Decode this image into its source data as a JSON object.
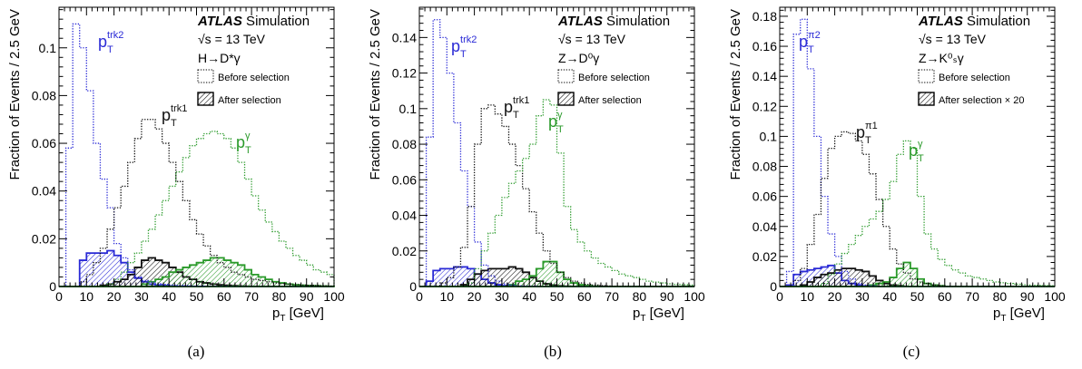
{
  "chart_data": [
    {
      "type": "line",
      "caption": "(a)",
      "xlabel": "p_T [GeV]",
      "ylabel": "Fraction of Events / 2.5 GeV",
      "xlim": [
        0,
        100
      ],
      "ylim": [
        0,
        0.117
      ],
      "xticks": [
        0,
        10,
        20,
        30,
        40,
        50,
        60,
        70,
        80,
        90,
        100
      ],
      "yticks": [
        0,
        0.02,
        0.04,
        0.06,
        0.08,
        0.1
      ],
      "ytick_labels": [
        "0",
        "0.02",
        "0.04",
        "0.06",
        "0.08",
        "0.1"
      ],
      "atlas": "ATLAS",
      "atlas_sub": "Simulation",
      "energy": "√s = 13 TeV",
      "process": "H→D*γ",
      "legend": [
        "Before selection",
        "After selection"
      ],
      "x_edges": [
        0,
        2.5,
        5,
        7.5,
        10,
        12.5,
        15,
        17.5,
        20,
        22.5,
        25,
        27.5,
        30,
        32.5,
        35,
        37.5,
        40,
        42.5,
        45,
        47.5,
        50,
        52.5,
        55,
        57.5,
        60,
        62.5,
        65,
        67.5,
        70,
        72.5,
        75,
        77.5,
        80,
        82.5,
        85,
        87.5,
        90,
        92.5,
        95,
        97.5,
        100
      ],
      "series": [
        {
          "name": "p_T^trk2",
          "label_main": "p",
          "label_sub": "T",
          "label_sup": "trk2",
          "color": "#2a2ad6",
          "before": [
            0,
            0.058,
            0.11,
            0.1,
            0.082,
            0.06,
            0.045,
            0.033,
            0.018,
            0.012,
            0.007,
            0.004,
            0.0025,
            0.0018,
            0.0012,
            0.0009,
            0.0006,
            0.0004,
            0.0003,
            0.0002,
            0.0002,
            0.0001,
            0.0001,
            0.0001,
            0.0001,
            0,
            0,
            0,
            0,
            0,
            0,
            0,
            0,
            0,
            0,
            0,
            0,
            0,
            0,
            0
          ],
          "after": [
            0,
            0,
            0,
            0.011,
            0.014,
            0.014,
            0.014,
            0.015,
            0.013,
            0.01,
            0.006,
            0.0035,
            0.002,
            0.001,
            0.0006,
            0.0004,
            0.0002,
            0.0001,
            0.0001,
            0,
            0,
            0,
            0,
            0,
            0,
            0,
            0,
            0,
            0,
            0,
            0,
            0,
            0,
            0,
            0,
            0,
            0,
            0,
            0,
            0
          ]
        },
        {
          "name": "p_T^trk1",
          "label_main": "p",
          "label_sub": "T",
          "label_sup": "trk1",
          "color": "#111111",
          "before": [
            0,
            0,
            0,
            0.002,
            0.005,
            0.01,
            0.016,
            0.024,
            0.033,
            0.042,
            0.052,
            0.062,
            0.07,
            0.07,
            0.066,
            0.06,
            0.052,
            0.044,
            0.036,
            0.028,
            0.022,
            0.017,
            0.013,
            0.01,
            0.008,
            0.006,
            0.005,
            0.004,
            0.003,
            0.0025,
            0.002,
            0.0015,
            0.0012,
            0.001,
            0.0008,
            0.0006,
            0.0005,
            0.0004,
            0.0003,
            0.0002
          ],
          "after": [
            0,
            0,
            0,
            0,
            0,
            0,
            0.0005,
            0.001,
            0.002,
            0.003,
            0.005,
            0.008,
            0.011,
            0.012,
            0.011,
            0.01,
            0.008,
            0.006,
            0.004,
            0.003,
            0.002,
            0.0015,
            0.001,
            0.0007,
            0.0005,
            0.0003,
            0.0002,
            0.0001,
            0,
            0,
            0,
            0,
            0,
            0,
            0,
            0,
            0,
            0,
            0,
            0
          ]
        },
        {
          "name": "p_T^γ",
          "label_main": "p",
          "label_sub": "T",
          "label_sup": "γ",
          "color": "#2a9a2a",
          "before": [
            0,
            0,
            0,
            0,
            0,
            0,
            0,
            0.001,
            0.003,
            0.006,
            0.01,
            0.014,
            0.019,
            0.024,
            0.03,
            0.036,
            0.042,
            0.048,
            0.054,
            0.059,
            0.062,
            0.064,
            0.065,
            0.064,
            0.062,
            0.058,
            0.052,
            0.045,
            0.038,
            0.032,
            0.027,
            0.023,
            0.019,
            0.016,
            0.013,
            0.011,
            0.009,
            0.007,
            0.006,
            0.005
          ],
          "after": [
            0,
            0,
            0,
            0,
            0,
            0,
            0,
            0,
            0,
            0,
            0,
            0,
            0.001,
            0.002,
            0.003,
            0.004,
            0.006,
            0.007,
            0.008,
            0.009,
            0.01,
            0.011,
            0.012,
            0.012,
            0.011,
            0.01,
            0.009,
            0.007,
            0.005,
            0.004,
            0.003,
            0.002,
            0.0015,
            0.001,
            0.0007,
            0.0005,
            0.0004,
            0.0003,
            0.0002,
            0.0001
          ]
        }
      ]
    },
    {
      "type": "line",
      "caption": "(b)",
      "xlabel": "p_T [GeV]",
      "ylabel": "Fraction of Events / 2.5 GeV",
      "xlim": [
        0,
        100
      ],
      "ylim": [
        0,
        0.157
      ],
      "xticks": [
        0,
        10,
        20,
        30,
        40,
        50,
        60,
        70,
        80,
        90,
        100
      ],
      "yticks": [
        0,
        0.02,
        0.04,
        0.06,
        0.08,
        0.1,
        0.12,
        0.14
      ],
      "ytick_labels": [
        "0",
        "0.02",
        "0.04",
        "0.06",
        "0.08",
        "0.1",
        "0.12",
        "0.14"
      ],
      "atlas": "ATLAS",
      "atlas_sub": "Simulation",
      "energy": "√s = 13 TeV",
      "process": "Z→D⁰γ",
      "legend": [
        "Before selection",
        "After selection"
      ],
      "x_edges": [
        0,
        2.5,
        5,
        7.5,
        10,
        12.5,
        15,
        17.5,
        20,
        22.5,
        25,
        27.5,
        30,
        32.5,
        35,
        37.5,
        40,
        42.5,
        45,
        47.5,
        50,
        52.5,
        55,
        57.5,
        60,
        62.5,
        65,
        67.5,
        70,
        72.5,
        75,
        77.5,
        80,
        82.5,
        85,
        87.5,
        90,
        92.5,
        95,
        97.5,
        100
      ],
      "series": [
        {
          "name": "p_T^trk2",
          "label_main": "p",
          "label_sub": "T",
          "label_sup": "trk2",
          "color": "#2a2ad6",
          "before": [
            0,
            0.084,
            0.15,
            0.14,
            0.12,
            0.092,
            0.065,
            0.045,
            0.025,
            0.012,
            0.006,
            0.003,
            0.0015,
            0.0008,
            0.0004,
            0.0002,
            0.0001,
            0,
            0,
            0,
            0,
            0,
            0,
            0,
            0,
            0,
            0,
            0,
            0,
            0,
            0,
            0,
            0,
            0,
            0,
            0,
            0,
            0,
            0,
            0
          ],
          "after": [
            0,
            0.003,
            0.009,
            0.01,
            0.01,
            0.011,
            0.011,
            0.01,
            0.007,
            0.004,
            0.002,
            0.001,
            0.0005,
            0.0002,
            0,
            0,
            0,
            0,
            0,
            0,
            0,
            0,
            0,
            0,
            0,
            0,
            0,
            0,
            0,
            0,
            0,
            0,
            0,
            0,
            0,
            0,
            0,
            0,
            0,
            0
          ]
        },
        {
          "name": "p_T^trk1",
          "label_main": "p",
          "label_sub": "T",
          "label_sup": "trk1",
          "color": "#111111",
          "before": [
            0,
            0,
            0,
            0.002,
            0.005,
            0.011,
            0.022,
            0.045,
            0.08,
            0.1,
            0.102,
            0.097,
            0.09,
            0.08,
            0.068,
            0.055,
            0.042,
            0.03,
            0.02,
            0.013,
            0.008,
            0.005,
            0.003,
            0.002,
            0.0012,
            0.0008,
            0.0005,
            0.0003,
            0.0002,
            0.0001,
            0,
            0,
            0,
            0,
            0,
            0,
            0,
            0,
            0,
            0
          ],
          "after": [
            0,
            0,
            0,
            0,
            0,
            0,
            0.001,
            0.004,
            0.007,
            0.009,
            0.01,
            0.01,
            0.01,
            0.011,
            0.01,
            0.008,
            0.005,
            0.003,
            0.0015,
            0.0008,
            0.0004,
            0.0002,
            0,
            0,
            0,
            0,
            0,
            0,
            0,
            0,
            0,
            0,
            0,
            0,
            0,
            0,
            0,
            0,
            0,
            0
          ]
        },
        {
          "name": "p_T^γ",
          "label_main": "p",
          "label_sub": "T",
          "label_sup": "γ",
          "color": "#2a9a2a",
          "before": [
            0,
            0,
            0,
            0,
            0,
            0,
            0,
            0.002,
            0.01,
            0.02,
            0.03,
            0.04,
            0.05,
            0.058,
            0.065,
            0.072,
            0.08,
            0.096,
            0.105,
            0.102,
            0.075,
            0.045,
            0.032,
            0.025,
            0.02,
            0.016,
            0.013,
            0.011,
            0.009,
            0.007,
            0.006,
            0.005,
            0.004,
            0.003,
            0.0025,
            0.002,
            0.0015,
            0.0012,
            0.001,
            0.0008
          ],
          "after": [
            0,
            0,
            0,
            0,
            0,
            0,
            0,
            0,
            0,
            0,
            0,
            0,
            0,
            0.001,
            0.003,
            0.004,
            0.006,
            0.01,
            0.014,
            0.014,
            0.008,
            0.004,
            0.002,
            0.001,
            0.0005,
            0.0002,
            0,
            0,
            0,
            0,
            0,
            0,
            0,
            0,
            0,
            0,
            0,
            0,
            0,
            0
          ]
        }
      ]
    },
    {
      "type": "line",
      "caption": "(c)",
      "xlabel": "p_T [GeV]",
      "ylabel": "Fraction of Events / 2.5 GeV",
      "xlim": [
        0,
        100
      ],
      "ylim": [
        0,
        0.186
      ],
      "xticks": [
        0,
        10,
        20,
        30,
        40,
        50,
        60,
        70,
        80,
        90,
        100
      ],
      "yticks": [
        0,
        0.02,
        0.04,
        0.06,
        0.08,
        0.1,
        0.12,
        0.14,
        0.16,
        0.18
      ],
      "ytick_labels": [
        "0",
        "0.02",
        "0.04",
        "0.06",
        "0.08",
        "0.1",
        "0.12",
        "0.14",
        "0.16",
        "0.18"
      ],
      "atlas": "ATLAS",
      "atlas_sub": "Simulation",
      "energy": "√s = 13 TeV",
      "process": "Z→K⁰ₛγ",
      "legend": [
        "Before selection",
        "After selection × 20"
      ],
      "x_edges": [
        0,
        2.5,
        5,
        7.5,
        10,
        12.5,
        15,
        17.5,
        20,
        22.5,
        25,
        27.5,
        30,
        32.5,
        35,
        37.5,
        40,
        42.5,
        45,
        47.5,
        50,
        52.5,
        55,
        57.5,
        60,
        62.5,
        65,
        67.5,
        70,
        72.5,
        75,
        77.5,
        80,
        82.5,
        85,
        87.5,
        90,
        92.5,
        95,
        97.5,
        100
      ],
      "series": [
        {
          "name": "p_T^π2",
          "label_main": "p",
          "label_sub": "T",
          "label_sup": "π2",
          "color": "#2a2ad6",
          "before": [
            0,
            0.01,
            0.168,
            0.178,
            0.145,
            0.1,
            0.06,
            0.035,
            0.02,
            0.01,
            0.005,
            0.002,
            0.001,
            0.0005,
            0,
            0,
            0,
            0,
            0,
            0,
            0,
            0,
            0,
            0,
            0,
            0,
            0,
            0,
            0,
            0,
            0,
            0,
            0,
            0,
            0,
            0,
            0,
            0,
            0,
            0
          ],
          "after": [
            0,
            0.001,
            0.008,
            0.01,
            0.011,
            0.012,
            0.013,
            0.014,
            0.009,
            0.004,
            0.002,
            0.001,
            0.0004,
            0,
            0,
            0,
            0,
            0,
            0,
            0,
            0,
            0,
            0,
            0,
            0,
            0,
            0,
            0,
            0,
            0,
            0,
            0,
            0,
            0,
            0,
            0,
            0,
            0,
            0,
            0
          ]
        },
        {
          "name": "p_T^π1",
          "label_main": "p",
          "label_sub": "T",
          "label_sup": "π1",
          "color": "#111111",
          "before": [
            0,
            0,
            0.004,
            0.012,
            0.028,
            0.048,
            0.072,
            0.092,
            0.1,
            0.103,
            0.102,
            0.097,
            0.088,
            0.075,
            0.058,
            0.04,
            0.025,
            0.015,
            0.009,
            0.005,
            0.003,
            0.002,
            0.001,
            0.0005,
            0,
            0,
            0,
            0,
            0,
            0,
            0,
            0,
            0,
            0,
            0,
            0,
            0,
            0,
            0,
            0
          ],
          "after": [
            0,
            0,
            0,
            0.001,
            0.003,
            0.006,
            0.008,
            0.009,
            0.011,
            0.012,
            0.012,
            0.011,
            0.01,
            0.007,
            0.004,
            0.002,
            0.001,
            0.0005,
            0,
            0,
            0,
            0,
            0,
            0,
            0,
            0,
            0,
            0,
            0,
            0,
            0,
            0,
            0,
            0,
            0,
            0,
            0,
            0,
            0,
            0
          ]
        },
        {
          "name": "p_T^γ",
          "label_main": "p",
          "label_sub": "T",
          "label_sup": "γ",
          "color": "#2a9a2a",
          "before": [
            0,
            0,
            0,
            0,
            0,
            0,
            0.002,
            0.008,
            0.015,
            0.022,
            0.028,
            0.034,
            0.04,
            0.045,
            0.05,
            0.058,
            0.07,
            0.088,
            0.097,
            0.092,
            0.06,
            0.035,
            0.025,
            0.018,
            0.014,
            0.011,
            0.009,
            0.007,
            0.006,
            0.005,
            0.004,
            0.003,
            0.0025,
            0.002,
            0.0015,
            0.0012,
            0.001,
            0.0008,
            0.0006,
            0.0005
          ],
          "after": [
            0,
            0,
            0,
            0,
            0,
            0,
            0,
            0,
            0,
            0,
            0,
            0,
            0,
            0.001,
            0.002,
            0.003,
            0.006,
            0.012,
            0.016,
            0.012,
            0.005,
            0.002,
            0.001,
            0.0005,
            0,
            0,
            0,
            0,
            0,
            0,
            0,
            0,
            0,
            0,
            0,
            0,
            0,
            0,
            0,
            0
          ]
        }
      ]
    }
  ]
}
